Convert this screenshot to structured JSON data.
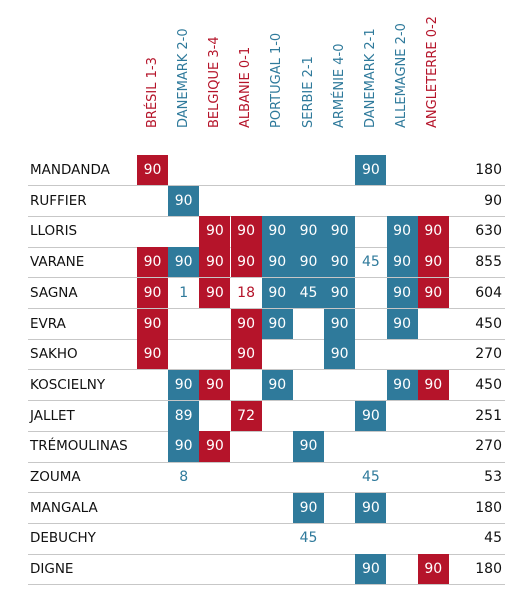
{
  "chart_data": {
    "type": "table",
    "columns": [
      {
        "label": "BRÉSIL 1-3",
        "color": "#b5142a"
      },
      {
        "label": "DANEMARK 2-0",
        "color": "#2f7a9b"
      },
      {
        "label": "BELGIQUE 3-4",
        "color": "#b5142a"
      },
      {
        "label": "ALBANIE 0-1",
        "color": "#b5142a"
      },
      {
        "label": "PORTUGAL 1-0",
        "color": "#2f7a9b"
      },
      {
        "label": "SERBIE 2-1",
        "color": "#2f7a9b"
      },
      {
        "label": "ARMÉNIE 4-0",
        "color": "#2f7a9b"
      },
      {
        "label": "DANEMARK 2-1",
        "color": "#2f7a9b"
      },
      {
        "label": "ALLEMAGNE 2-0",
        "color": "#2f7a9b"
      },
      {
        "label": "ANGLETERRE 0-2",
        "color": "#b5142a"
      }
    ],
    "rows": [
      {
        "player": "MANDANDA",
        "minutes": [
          90,
          null,
          null,
          null,
          null,
          null,
          null,
          90,
          null,
          null
        ],
        "total": "180"
      },
      {
        "player": "RUFFIER",
        "minutes": [
          null,
          90,
          null,
          null,
          null,
          null,
          null,
          null,
          null,
          null
        ],
        "total": "90"
      },
      {
        "player": "LLORIS",
        "minutes": [
          null,
          null,
          90,
          90,
          90,
          90,
          90,
          null,
          90,
          90
        ],
        "total": "630"
      },
      {
        "player": "VARANE",
        "minutes": [
          90,
          90,
          90,
          90,
          90,
          90,
          90,
          45,
          90,
          90
        ],
        "total": "855"
      },
      {
        "player": "SAGNA",
        "minutes": [
          90,
          1,
          90,
          18,
          90,
          45,
          90,
          null,
          90,
          90
        ],
        "total": "604"
      },
      {
        "player": "EVRA",
        "minutes": [
          90,
          null,
          null,
          90,
          90,
          null,
          90,
          null,
          90,
          null
        ],
        "total": "450"
      },
      {
        "player": "SAKHO",
        "minutes": [
          90,
          null,
          null,
          90,
          null,
          null,
          90,
          null,
          null,
          null
        ],
        "total": "270"
      },
      {
        "player": "KOSCIELNY",
        "minutes": [
          null,
          90,
          90,
          null,
          90,
          null,
          null,
          null,
          90,
          90
        ],
        "total": "450"
      },
      {
        "player": "JALLET",
        "minutes": [
          null,
          89,
          null,
          72,
          null,
          null,
          null,
          90,
          null,
          null
        ],
        "total": "251"
      },
      {
        "player": "TRÉMOULINAS",
        "minutes": [
          null,
          90,
          90,
          null,
          null,
          90,
          null,
          null,
          null,
          null
        ],
        "total": "270"
      },
      {
        "player": "ZOUMA",
        "minutes": [
          null,
          8,
          null,
          null,
          null,
          null,
          null,
          45,
          null,
          null
        ],
        "total": "53"
      },
      {
        "player": "MANGALA",
        "minutes": [
          null,
          null,
          null,
          null,
          null,
          90,
          null,
          90,
          null,
          null
        ],
        "total": "180"
      },
      {
        "player": "DEBUCHY",
        "minutes": [
          null,
          null,
          null,
          null,
          null,
          45,
          null,
          null,
          null,
          null
        ],
        "total": "45"
      },
      {
        "player": "DIGNE",
        "minutes": [
          null,
          null,
          null,
          null,
          null,
          null,
          null,
          90,
          null,
          90
        ],
        "total": "180"
      }
    ],
    "filled_cells": [
      [
        1,
        0,
        0,
        0,
        0,
        0,
        0,
        1,
        0,
        0
      ],
      [
        0,
        1,
        0,
        0,
        0,
        0,
        0,
        0,
        0,
        0
      ],
      [
        0,
        0,
        1,
        1,
        1,
        1,
        1,
        0,
        1,
        1
      ],
      [
        1,
        1,
        1,
        1,
        1,
        1,
        1,
        0,
        1,
        1
      ],
      [
        1,
        0,
        1,
        0,
        1,
        1,
        1,
        0,
        1,
        1
      ],
      [
        1,
        0,
        0,
        1,
        1,
        0,
        1,
        0,
        1,
        0
      ],
      [
        1,
        0,
        0,
        1,
        0,
        0,
        1,
        0,
        0,
        0
      ],
      [
        0,
        1,
        1,
        0,
        1,
        0,
        0,
        0,
        1,
        1
      ],
      [
        0,
        1,
        0,
        1,
        0,
        0,
        0,
        1,
        0,
        0
      ],
      [
        0,
        1,
        1,
        0,
        0,
        1,
        0,
        0,
        0,
        0
      ],
      [
        0,
        0,
        0,
        0,
        0,
        0,
        0,
        0,
        0,
        0
      ],
      [
        0,
        0,
        0,
        0,
        0,
        1,
        0,
        1,
        0,
        0
      ],
      [
        0,
        0,
        0,
        0,
        0,
        0,
        0,
        0,
        0,
        0
      ],
      [
        0,
        0,
        0,
        0,
        0,
        0,
        0,
        1,
        0,
        1
      ]
    ]
  }
}
